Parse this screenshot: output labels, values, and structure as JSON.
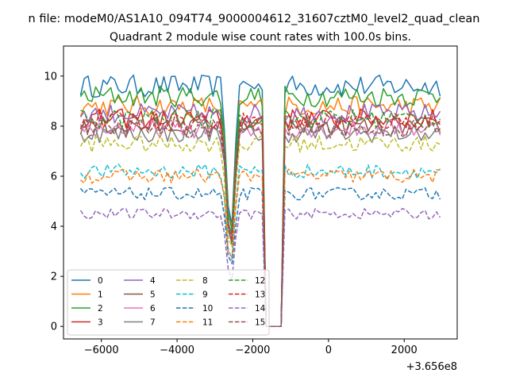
{
  "chart_data": {
    "type": "line",
    "suptitle": "n file: modeM0/AS1A10_094T74_9000004612_31607cztM0_level2_quad_clean",
    "title": "Quadrant 2 module wise count rates with 100.0s bins.",
    "xlabel": "",
    "ylabel": "",
    "x_offset_label": "+3.656e8",
    "xlim": [
      -7000,
      3400
    ],
    "ylim": [
      -0.5,
      11.2
    ],
    "xticks": [
      -6000,
      -4000,
      -2000,
      0,
      2000
    ],
    "xtick_labels": [
      "−6000",
      "−4000",
      "−2000",
      "0",
      "2000"
    ],
    "yticks": [
      0,
      2,
      4,
      6,
      8,
      10
    ],
    "ytick_labels": [
      "0",
      "2",
      "4",
      "6",
      "8",
      "10"
    ],
    "x_range": [
      -6550,
      2950
    ],
    "bin": 100,
    "gap": {
      "dip": [
        -2800,
        -2420
      ],
      "zero": [
        -1700,
        -1200
      ]
    },
    "grid": false,
    "legend": {
      "placement": "lower-left",
      "columns": 4
    },
    "series": [
      {
        "name": "0",
        "color": "#1f77b4",
        "dash": "solid",
        "level": 9.6
      },
      {
        "name": "1",
        "color": "#ff7f0e",
        "dash": "solid",
        "level": 8.8
      },
      {
        "name": "2",
        "color": "#2ca02c",
        "dash": "solid",
        "level": 9.2
      },
      {
        "name": "3",
        "color": "#d62728",
        "dash": "solid",
        "level": 8.3
      },
      {
        "name": "4",
        "color": "#9467bd",
        "dash": "solid",
        "level": 8.5
      },
      {
        "name": "5",
        "color": "#8c564b",
        "dash": "solid",
        "level": 8.0
      },
      {
        "name": "6",
        "color": "#e377c2",
        "dash": "solid",
        "level": 7.9
      },
      {
        "name": "7",
        "color": "#7f7f7f",
        "dash": "solid",
        "level": 7.7
      },
      {
        "name": "8",
        "color": "#bcbd22",
        "dash": "dashed",
        "level": 7.3
      },
      {
        "name": "9",
        "color": "#17becf",
        "dash": "dashed",
        "level": 6.2
      },
      {
        "name": "10",
        "color": "#1f77b4",
        "dash": "dashed",
        "level": 5.3
      },
      {
        "name": "11",
        "color": "#ff7f0e",
        "dash": "dashed",
        "level": 6.0
      },
      {
        "name": "12",
        "color": "#2ca02c",
        "dash": "dashed",
        "level": 8.3
      },
      {
        "name": "13",
        "color": "#d62728",
        "dash": "dashed",
        "level": 8.2
      },
      {
        "name": "14",
        "color": "#9467bd",
        "dash": "dashed",
        "level": 4.5
      },
      {
        "name": "15",
        "color": "#8c564b",
        "dash": "dashed",
        "level": 7.9
      }
    ]
  }
}
